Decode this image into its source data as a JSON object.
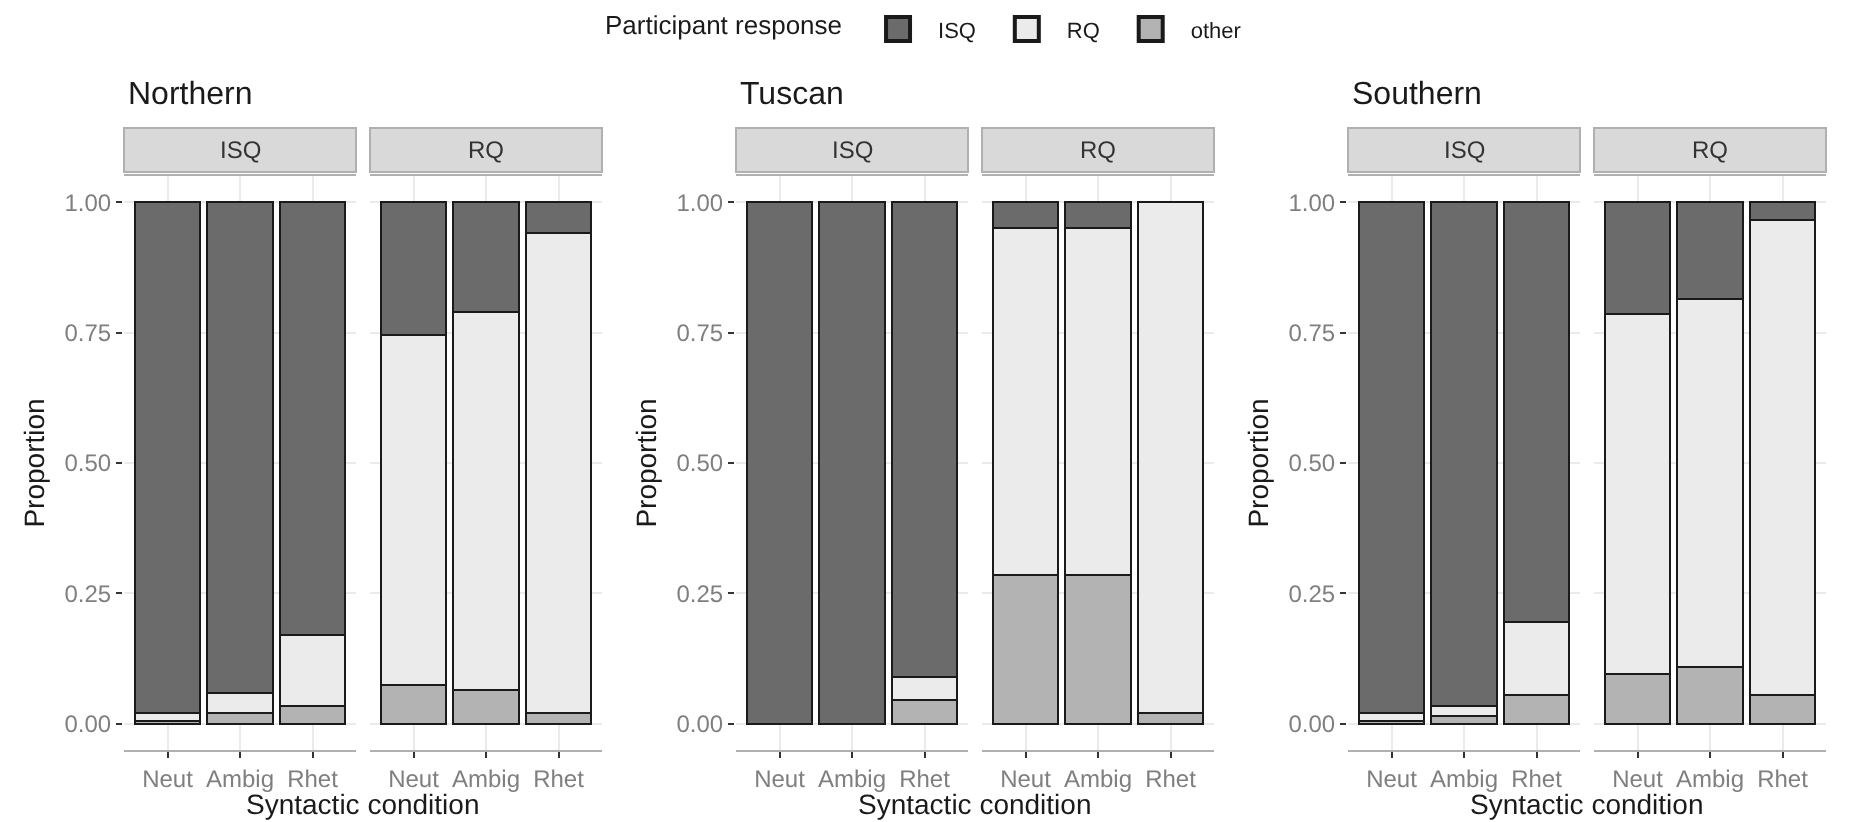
{
  "chart_data": [
    {
      "type": "bar",
      "stacked": true,
      "title": "Northern",
      "xlabel": "Syntactic condition",
      "ylabel": "Proportion",
      "legend_title": "Participant response",
      "legend": "top",
      "grid": true,
      "annotations": [
        "ISQ",
        "RQ"
      ],
      "categories": [
        "Neut",
        "Ambig",
        "Rhet",
        "Neut",
        "Ambig",
        "Rhet"
      ],
      "ylim": [
        -0.05,
        1.05
      ],
      "yticks": [
        {
          "value": 0,
          "label": "0.00"
        },
        {
          "value": 0.25,
          "label": "0.25"
        },
        {
          "value": 0.5,
          "label": "0.50"
        },
        {
          "value": 0.75,
          "label": "0.75"
        },
        {
          "value": 1,
          "label": "1.00"
        }
      ],
      "series": [
        {
          "name": "other",
          "color": "#b3b3b3",
          "values": [
            0.005,
            0.02,
            0.035,
            0.075,
            0.065,
            0.02
          ]
        },
        {
          "name": "RQ",
          "color": "#ebebeb",
          "values": [
            0.015,
            0.04,
            0.135,
            0.67,
            0.725,
            0.92
          ]
        },
        {
          "name": "ISQ",
          "color": "#6b6b6b",
          "values": [
            0.98,
            0.94,
            0.83,
            0.255,
            0.21,
            0.06
          ]
        }
      ]
    },
    {
      "type": "bar",
      "stacked": true,
      "title": "Tuscan",
      "xlabel": "Syntactic condition",
      "ylabel": "Proportion",
      "legend": false,
      "grid": true,
      "annotations": [
        "ISQ",
        "RQ"
      ],
      "categories": [
        "Neut",
        "Ambig",
        "Rhet",
        "Neut",
        "Ambig",
        "Rhet"
      ],
      "ylim": [
        -0.05,
        1.05
      ],
      "yticks": [
        {
          "value": 0,
          "label": "0.00"
        },
        {
          "value": 0.25,
          "label": "0.25"
        },
        {
          "value": 0.5,
          "label": "0.50"
        },
        {
          "value": 0.75,
          "label": "0.75"
        },
        {
          "value": 1,
          "label": "1.00"
        }
      ],
      "series": [
        {
          "color": "#b3b3b3",
          "values": [
            null,
            null,
            0.045,
            0.285,
            0.285,
            0.02
          ]
        },
        {
          "color": "#ebebeb",
          "values": [
            null,
            null,
            0.045,
            0.665,
            0.665,
            0.98
          ]
        },
        {
          "color": "#6b6b6b",
          "values": [
            1,
            1,
            0.91,
            0.05,
            0.05,
            null
          ]
        }
      ]
    },
    {
      "type": "bar",
      "stacked": true,
      "title": "Southern",
      "xlabel": "Syntactic condition",
      "ylabel": "Proportion",
      "legend": false,
      "grid": true,
      "annotations": [
        "ISQ",
        "RQ"
      ],
      "categories": [
        "Neut",
        "Ambig",
        "Rhet",
        "Neut",
        "Ambig",
        "Rhet"
      ],
      "ylim": [
        -0.05,
        1.05
      ],
      "yticks": [
        {
          "value": 0,
          "label": "0.00"
        },
        {
          "value": 0.25,
          "label": "0.25"
        },
        {
          "value": 0.5,
          "label": "0.50"
        },
        {
          "value": 0.75,
          "label": "0.75"
        },
        {
          "value": 1,
          "label": "1.00"
        }
      ],
      "series": [
        {
          "color": "#b3b3b3",
          "values": [
            0.005,
            0.015,
            0.055,
            0.095,
            0.11,
            0.055
          ]
        },
        {
          "color": "#ebebeb",
          "values": [
            0.015,
            0.02,
            0.14,
            0.69,
            0.705,
            0.91
          ]
        },
        {
          "color": "#6b6b6b",
          "values": [
            0.98,
            0.965,
            0.805,
            0.215,
            0.185,
            0.035
          ]
        }
      ]
    }
  ]
}
